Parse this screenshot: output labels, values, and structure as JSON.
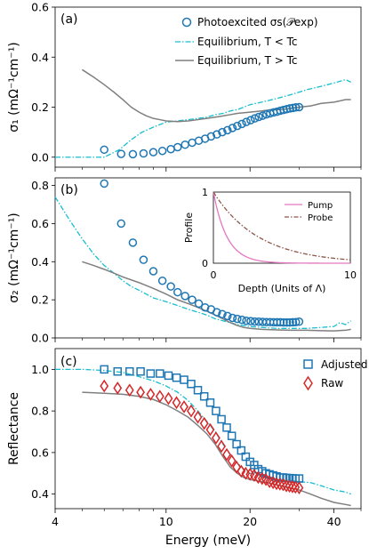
{
  "colors": {
    "teal": "#17becf",
    "gray": "#7f7f7f",
    "blue": "#1f77b4",
    "red": "#d62728",
    "pink": "#e377c2",
    "brown": "#8c564b"
  },
  "chart_data": [
    {
      "panel": "(a)",
      "type": "line",
      "ylabel": "σ₁ (mΩ⁻¹cm⁻¹)",
      "xscale": "log",
      "xlim": [
        4,
        50
      ],
      "ylim": [
        -0.04,
        0.6
      ],
      "yticks": [
        "0.0",
        "0.2",
        "0.4",
        "0.6"
      ],
      "legend_position": "top-right",
      "series": [
        {
          "name": "Photoexcited σs(𝒫exp)",
          "style": "blue-circles",
          "x": [
            6,
            6.9,
            7.6,
            8.3,
            9.0,
            9.7,
            10.4,
            11.0,
            11.7,
            12.4,
            13.1,
            13.8,
            14.5,
            15.2,
            15.9,
            16.6,
            17.3,
            18.0,
            18.7,
            19.4,
            20.1,
            20.8,
            21.5,
            22.2,
            22.9,
            23.6,
            24.3,
            25.0,
            25.7,
            26.4,
            27.1,
            27.8,
            28.5,
            29.2,
            30.0
          ],
          "y": [
            0.03,
            0.013,
            0.012,
            0.015,
            0.02,
            0.025,
            0.032,
            0.04,
            0.05,
            0.058,
            0.066,
            0.074,
            0.083,
            0.091,
            0.1,
            0.108,
            0.117,
            0.125,
            0.133,
            0.141,
            0.148,
            0.155,
            0.161,
            0.166,
            0.171,
            0.175,
            0.179,
            0.182,
            0.186,
            0.189,
            0.192,
            0.195,
            0.197,
            0.199,
            0.2
          ]
        },
        {
          "name": "Equilibrium, T < Tc",
          "style": "teal-dashdot",
          "x": [
            4,
            5,
            6,
            6.8,
            7.5,
            8.2,
            9.0,
            10.0,
            11.0,
            12.0,
            13.0,
            14.0,
            15.0,
            16.0,
            17.0,
            18.0,
            19.0,
            20.0,
            22.0,
            24.0,
            26.0,
            28.0,
            30.0,
            32.0,
            35.0,
            38.0,
            41.0,
            44.0,
            46.0
          ],
          "y": [
            0.0,
            0.0,
            0.0,
            0.03,
            0.07,
            0.1,
            0.12,
            0.14,
            0.145,
            0.15,
            0.155,
            0.16,
            0.17,
            0.175,
            0.185,
            0.19,
            0.2,
            0.21,
            0.22,
            0.23,
            0.24,
            0.25,
            0.26,
            0.27,
            0.28,
            0.29,
            0.3,
            0.31,
            0.3
          ]
        },
        {
          "name": "Equilibrium, T > Tc",
          "style": "gray-solid",
          "x": [
            5.0,
            5.5,
            6.0,
            6.5,
            7.0,
            7.5,
            8.0,
            8.5,
            9.0,
            9.5,
            10.0,
            11.0,
            12.0,
            13.0,
            14.0,
            15.0,
            16.0,
            17.0,
            18.0,
            20.0,
            22.0,
            24.0,
            26.0,
            28.0,
            30.0,
            33.0,
            36.0,
            40.0,
            44.0,
            46.0
          ],
          "y": [
            0.35,
            0.32,
            0.29,
            0.26,
            0.23,
            0.2,
            0.18,
            0.165,
            0.155,
            0.15,
            0.145,
            0.142,
            0.145,
            0.15,
            0.155,
            0.16,
            0.165,
            0.17,
            0.175,
            0.18,
            0.185,
            0.19,
            0.19,
            0.195,
            0.2,
            0.205,
            0.215,
            0.22,
            0.23,
            0.23
          ]
        }
      ]
    },
    {
      "panel": "(b)",
      "type": "line",
      "ylabel": "σ₂ (mΩ⁻¹cm⁻¹)",
      "xscale": "log",
      "xlim": [
        4,
        50
      ],
      "ylim": [
        0.0,
        0.84
      ],
      "yticks": [
        "0.0",
        "0.2",
        "0.4",
        "0.6",
        "0.8"
      ],
      "series": [
        {
          "name": "Photoexcited",
          "style": "blue-circles",
          "x": [
            6.0,
            6.9,
            7.6,
            8.3,
            9.0,
            9.7,
            10.4,
            11.0,
            11.7,
            12.4,
            13.1,
            13.8,
            14.5,
            15.2,
            15.9,
            16.6,
            17.3,
            18.0,
            18.7,
            19.4,
            20.1,
            20.8,
            21.5,
            22.2,
            22.9,
            23.6,
            24.3,
            25.0,
            25.7,
            26.4,
            27.1,
            27.8,
            28.5,
            29.2,
            30.0
          ],
          "y": [
            0.81,
            0.6,
            0.5,
            0.41,
            0.35,
            0.3,
            0.27,
            0.24,
            0.22,
            0.2,
            0.18,
            0.16,
            0.15,
            0.135,
            0.125,
            0.115,
            0.105,
            0.1,
            0.095,
            0.09,
            0.088,
            0.086,
            0.085,
            0.084,
            0.083,
            0.083,
            0.082,
            0.082,
            0.082,
            0.081,
            0.081,
            0.081,
            0.082,
            0.083,
            0.085
          ]
        },
        {
          "name": "Equilibrium, T < Tc",
          "style": "teal-dashdot",
          "x": [
            4.0,
            4.5,
            5.0,
            5.5,
            6.0,
            6.5,
            7.0,
            7.5,
            8.0,
            9.0,
            10.0,
            11.0,
            12.0,
            13.0,
            14.0,
            15.0,
            16.0,
            17.0,
            18.0,
            20.0,
            22.0,
            25.0,
            28.0,
            32.0,
            36.0,
            40.0,
            42.0,
            44.0,
            46.0
          ],
          "y": [
            0.74,
            0.62,
            0.52,
            0.44,
            0.38,
            0.34,
            0.3,
            0.27,
            0.25,
            0.21,
            0.19,
            0.17,
            0.15,
            0.135,
            0.12,
            0.1,
            0.09,
            0.08,
            0.07,
            0.06,
            0.055,
            0.05,
            0.05,
            0.05,
            0.055,
            0.06,
            0.08,
            0.07,
            0.09
          ]
        },
        {
          "name": "Equilibrium, T > Tc",
          "style": "gray-solid",
          "x": [
            5.0,
            5.5,
            6.0,
            6.5,
            7.0,
            8.0,
            9.0,
            10.0,
            11.0,
            12.0,
            13.0,
            14.0,
            15.0,
            16.0,
            17.0,
            18.0,
            19.0,
            20.0,
            22.0,
            25.0,
            28.0,
            32.0,
            36.0,
            40.0,
            44.0,
            46.0
          ],
          "y": [
            0.4,
            0.38,
            0.36,
            0.34,
            0.32,
            0.29,
            0.26,
            0.23,
            0.2,
            0.18,
            0.16,
            0.14,
            0.12,
            0.1,
            0.08,
            0.065,
            0.055,
            0.05,
            0.045,
            0.042,
            0.04,
            0.04,
            0.038,
            0.037,
            0.04,
            0.045
          ]
        }
      ],
      "inset": {
        "xlabel": "Depth (Units of Λ)",
        "ylabel": "Profile",
        "xlim": [
          0,
          10
        ],
        "ylim": [
          0,
          1
        ],
        "xticks": [
          "0",
          "10"
        ],
        "yticks": [
          "0",
          "1"
        ],
        "series": [
          {
            "name": "Pump",
            "style": "pink-solid",
            "decay_length": 1.0
          },
          {
            "name": "Probe",
            "style": "brown-dashdot",
            "decay_length": 3.3
          }
        ]
      }
    },
    {
      "panel": "(c)",
      "type": "scatter",
      "xlabel": "Energy (meV)",
      "ylabel": "Reflectance",
      "xscale": "log",
      "xlim": [
        4,
        50
      ],
      "ylim": [
        0.33,
        1.1
      ],
      "xticks": [
        "4",
        "10",
        "20",
        "40"
      ],
      "yticks": [
        "0.4",
        "0.6",
        "0.8",
        "1.0"
      ],
      "legend_position": "top-right",
      "series": [
        {
          "name": "Adjusted",
          "style": "blue-squares",
          "x": [
            6.0,
            6.7,
            7.4,
            8.1,
            8.8,
            9.5,
            10.2,
            10.9,
            11.6,
            12.3,
            13.0,
            13.7,
            14.4,
            15.1,
            15.8,
            16.5,
            17.2,
            17.9,
            18.6,
            19.3,
            20.0,
            20.7,
            21.4,
            22.1,
            22.8,
            23.5,
            24.2,
            24.9,
            25.6,
            26.3,
            27.0,
            27.7,
            28.4,
            29.1,
            30.0
          ],
          "y": [
            1.0,
            0.99,
            0.99,
            0.99,
            0.98,
            0.98,
            0.97,
            0.96,
            0.95,
            0.93,
            0.9,
            0.87,
            0.84,
            0.8,
            0.76,
            0.72,
            0.68,
            0.64,
            0.61,
            0.58,
            0.555,
            0.54,
            0.52,
            0.51,
            0.5,
            0.495,
            0.49,
            0.485,
            0.48,
            0.48,
            0.478,
            0.477,
            0.476,
            0.475,
            0.475
          ]
        },
        {
          "name": "Raw",
          "style": "red-diamonds",
          "x": [
            6.0,
            6.7,
            7.4,
            8.1,
            8.8,
            9.5,
            10.2,
            10.9,
            11.6,
            12.3,
            13.0,
            13.7,
            14.4,
            15.1,
            15.8,
            16.5,
            17.2,
            17.9,
            18.6,
            19.3,
            20.0,
            20.7,
            21.4,
            22.1,
            22.8,
            23.5,
            24.2,
            24.9,
            25.6,
            26.3,
            27.0,
            27.7,
            28.4,
            29.1,
            30.0
          ],
          "y": [
            0.92,
            0.91,
            0.9,
            0.89,
            0.88,
            0.87,
            0.86,
            0.84,
            0.82,
            0.8,
            0.77,
            0.74,
            0.71,
            0.67,
            0.63,
            0.59,
            0.56,
            0.53,
            0.51,
            0.5,
            0.495,
            0.49,
            0.48,
            0.475,
            0.47,
            0.46,
            0.455,
            0.45,
            0.448,
            0.445,
            0.44,
            0.438,
            0.435,
            0.433,
            0.43
          ]
        },
        {
          "name": "Equilibrium, T < Tc",
          "style": "teal-dashdot",
          "x": [
            4.0,
            5.0,
            6.0,
            7.0,
            8.0,
            9.0,
            10.0,
            11.0,
            12.0,
            13.0,
            14.0,
            15.0,
            16.0,
            17.0,
            18.0,
            19.0,
            20.0,
            22.0,
            24.0,
            26.0,
            28.0,
            30.0,
            33.0,
            36.0,
            40.0,
            44.0,
            46.0
          ],
          "y": [
            1.0,
            1.0,
            0.995,
            0.985,
            0.965,
            0.945,
            0.92,
            0.89,
            0.85,
            0.8,
            0.75,
            0.7,
            0.64,
            0.59,
            0.55,
            0.52,
            0.5,
            0.49,
            0.48,
            0.47,
            0.465,
            0.46,
            0.455,
            0.44,
            0.42,
            0.41,
            0.4
          ]
        },
        {
          "name": "Equilibrium, T > Tc",
          "style": "gray-solid",
          "x": [
            5.0,
            6.0,
            7.0,
            8.0,
            9.0,
            10.0,
            11.0,
            12.0,
            13.0,
            14.0,
            15.0,
            16.0,
            17.0,
            18.0,
            19.0,
            20.0,
            22.0,
            24.0,
            26.0,
            28.0,
            30.0,
            33.0,
            36.0,
            40.0,
            44.0,
            46.0
          ],
          "y": [
            0.89,
            0.885,
            0.88,
            0.87,
            0.855,
            0.83,
            0.8,
            0.77,
            0.73,
            0.69,
            0.64,
            0.58,
            0.53,
            0.5,
            0.48,
            0.47,
            0.46,
            0.45,
            0.44,
            0.43,
            0.42,
            0.4,
            0.38,
            0.36,
            0.35,
            0.345
          ]
        }
      ]
    }
  ]
}
